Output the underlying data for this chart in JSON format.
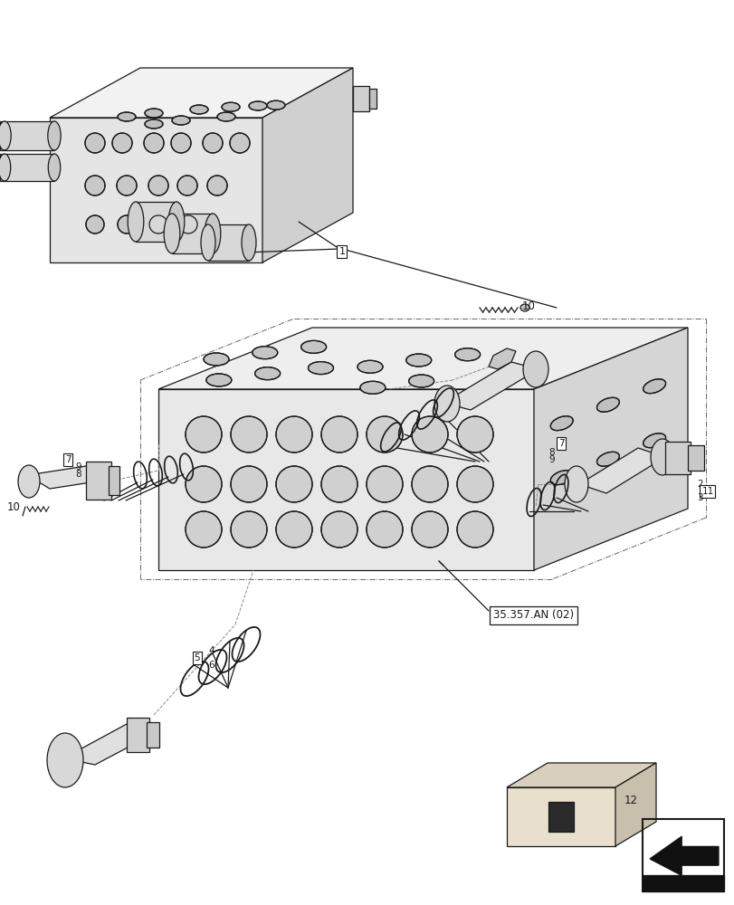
{
  "bg_color": "#ffffff",
  "lc": "#1a1a1a",
  "fig_w": 8.12,
  "fig_h": 10.0,
  "dpi": 100,
  "ref_label": "35.357.AN (02)"
}
